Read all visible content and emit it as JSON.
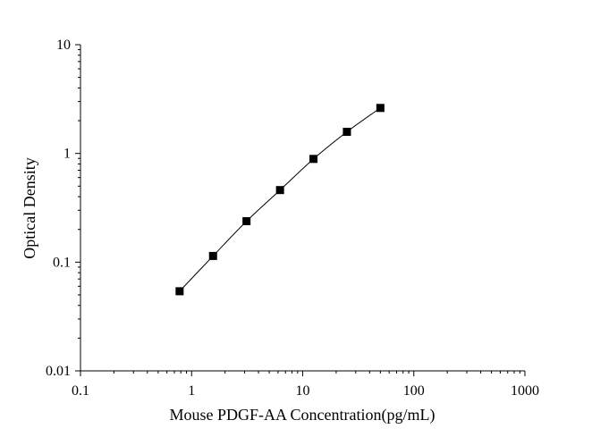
{
  "chart_data": {
    "type": "scatter",
    "title": "",
    "xlabel": "Mouse PDGF-AA Concentration(pg/mL)",
    "ylabel": "Optical Density",
    "x_scale": "log",
    "y_scale": "log",
    "xlim": [
      0.1,
      1000
    ],
    "ylim": [
      0.01,
      10
    ],
    "x_ticks": [
      "0.1",
      "1",
      "10",
      "100",
      "1000"
    ],
    "y_ticks": [
      "0.01",
      "0.1",
      "1",
      "10"
    ],
    "grid": false,
    "legend": "none",
    "series": [
      {
        "x": [
          0.78,
          1.56,
          3.12,
          6.25,
          12.5,
          25,
          50
        ],
        "y": [
          0.054,
          0.114,
          0.238,
          0.46,
          0.89,
          1.58,
          2.62
        ],
        "marker": "square",
        "line": "smooth",
        "color": "#000000"
      }
    ]
  }
}
